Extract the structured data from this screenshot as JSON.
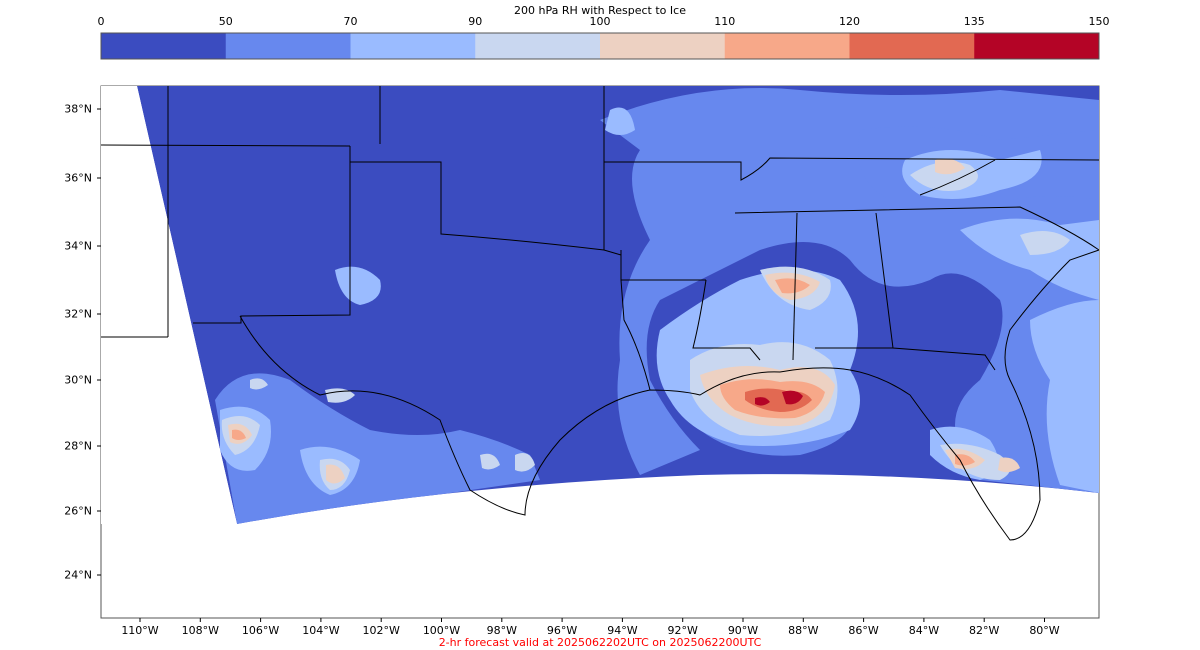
{
  "colorbar": {
    "title": "200 hPa RH with Respect to Ice",
    "ticks": [
      "0",
      "50",
      "70",
      "90",
      "100",
      "110",
      "120",
      "135",
      "150"
    ],
    "colors": [
      "#3b4cc0",
      "#6788ee",
      "#9abbff",
      "#c9d7f0",
      "#edd1c2",
      "#f7a889",
      "#e26952",
      "#b40426"
    ]
  },
  "map": {
    "lat_labels": [
      "38°N",
      "36°N",
      "34°N",
      "32°N",
      "30°N",
      "28°N",
      "26°N",
      "24°N"
    ],
    "lon_labels": [
      "110°W",
      "108°W",
      "106°W",
      "104°W",
      "102°W",
      "100°W",
      "98°W",
      "96°W",
      "94°W",
      "92°W",
      "90°W",
      "88°W",
      "86°W",
      "84°W",
      "82°W",
      "80°W"
    ],
    "footer": "2-hr forecast valid at 2025062202UTC on 2025062200UTC",
    "footer_color": "#ff0000",
    "field_background": "#3b4cc0"
  }
}
